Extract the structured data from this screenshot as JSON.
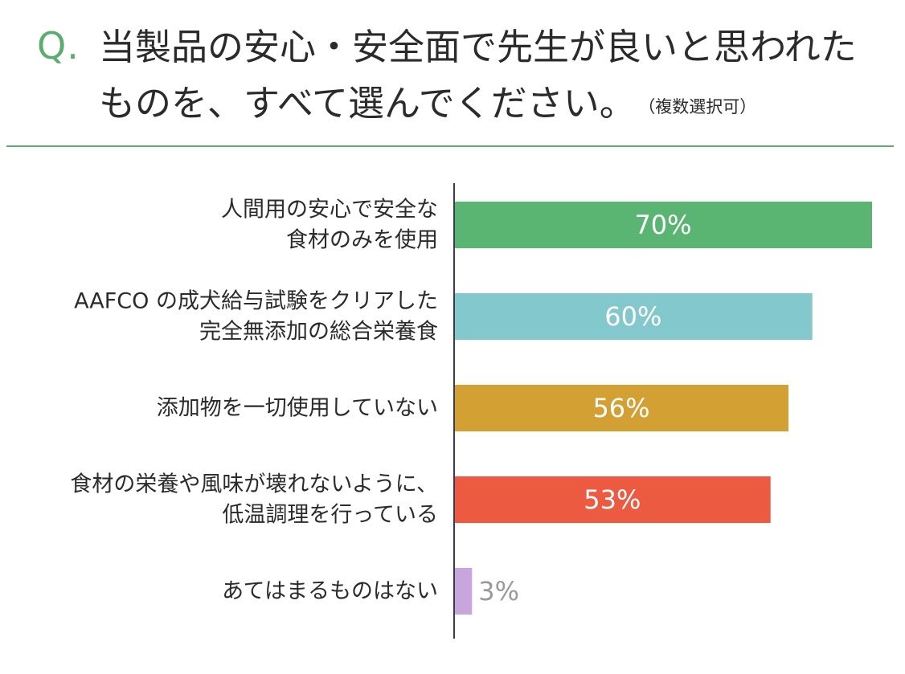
{
  "header": {
    "q_mark": "Q.",
    "question": "当製品の安心・安全面で先生が良いと思われたものを、すべて選んでください。",
    "note": "（複数選択可）"
  },
  "colors": {
    "accent": "#5aad6e",
    "axis": "#3b3a4f",
    "inside_label": "#ffffff",
    "outside_label": "#999999"
  },
  "chart_data": {
    "type": "bar",
    "orientation": "horizontal",
    "categories": [
      [
        "人間用の安心で安全な",
        "食材のみを使用"
      ],
      [
        "AAFCO の成犬給与試験をクリアした",
        "完全無添加の総合栄養食"
      ],
      [
        "添加物を一切使用していない"
      ],
      [
        "食材の栄養や風味が壊れないように、",
        "低温調理を行っている"
      ],
      [
        "あてはまるものはない"
      ]
    ],
    "values": [
      70,
      60,
      56,
      53,
      3
    ],
    "value_labels": [
      "70%",
      "60%",
      "56%",
      "53%",
      "3%"
    ],
    "bar_colors": [
      "#5ab472",
      "#82c8cc",
      "#d3a034",
      "#ec5a41",
      "#c8a5dc"
    ],
    "xlim": [
      0,
      70
    ],
    "grid": false,
    "legend": "none"
  }
}
